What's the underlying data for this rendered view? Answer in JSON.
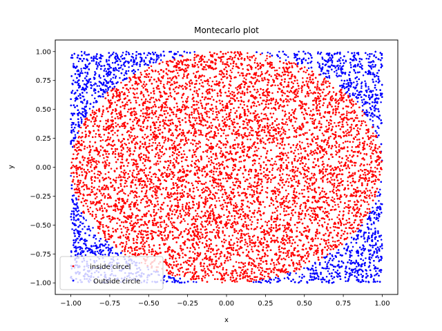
{
  "chart_data": {
    "type": "scatter",
    "title": "Montecarlo plot",
    "xlabel": "x",
    "ylabel": "y",
    "xlim": [
      -1.1,
      1.1
    ],
    "ylim": [
      -1.1,
      1.1
    ],
    "x_ticks": [
      -1.0,
      -0.75,
      -0.5,
      -0.25,
      0.0,
      0.25,
      0.5,
      0.75,
      1.0
    ],
    "x_tick_labels": [
      "−1.00",
      "−0.75",
      "−0.50",
      "−0.25",
      "0.00",
      "0.25",
      "0.50",
      "0.75",
      "1.00"
    ],
    "y_ticks": [
      -1.0,
      -0.75,
      -0.5,
      -0.25,
      0.0,
      0.25,
      0.5,
      0.75,
      1.0
    ],
    "y_tick_labels": [
      "−1.00",
      "−0.75",
      "−0.50",
      "−0.25",
      "0.00",
      "0.25",
      "0.50",
      "0.75",
      "1.00"
    ],
    "grid": false,
    "legend_position": "lower-left",
    "series": [
      {
        "name": "inside circel",
        "color": "#ff0000",
        "region": "x^2 + y^2 <= 1",
        "x_range": [
          -1.0,
          1.0
        ],
        "y_range": [
          -1.0,
          1.0
        ]
      },
      {
        "name": "Outside circle",
        "color": "#0000ff",
        "region": "x^2 + y^2 > 1",
        "x_range": [
          -1.0,
          1.0
        ],
        "y_range": [
          -1.0,
          1.0
        ]
      }
    ]
  }
}
